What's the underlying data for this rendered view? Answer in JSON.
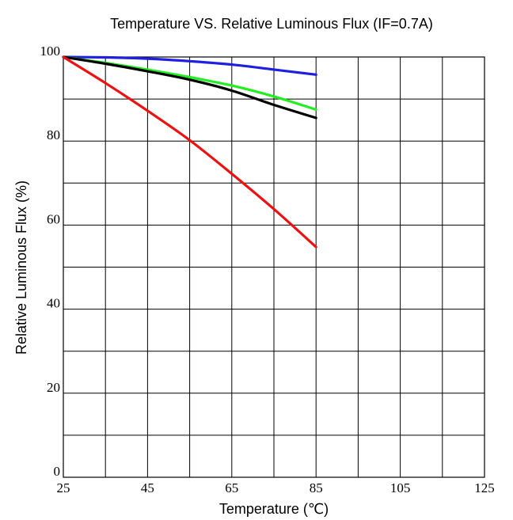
{
  "chart_data": {
    "type": "line",
    "title": "Temperature  VS.  Relative Luminous Flux (IF=0.7A)",
    "xlabel": "Temperature (℃)",
    "ylabel": "Relative Luminous Flux (%)",
    "xlim": [
      25,
      125
    ],
    "ylim": [
      0,
      100
    ],
    "x_ticks": [
      25,
      45,
      65,
      85,
      105,
      125
    ],
    "y_ticks": [
      0,
      20,
      40,
      60,
      80,
      100
    ],
    "x_grid_step": 10,
    "y_grid_step": 10,
    "grid": true,
    "series": [
      {
        "color": "#1f1fe0",
        "x": [
          25,
          35,
          45,
          55,
          65,
          75,
          85
        ],
        "y": [
          100,
          99.9,
          99.6,
          99.0,
          98.2,
          97.0,
          95.8
        ]
      },
      {
        "color": "#22ee22",
        "x": [
          25,
          35,
          45,
          55,
          65,
          75,
          85
        ],
        "y": [
          100,
          98.6,
          97.0,
          95.2,
          93.2,
          90.6,
          87.5
        ]
      },
      {
        "color": "#000000",
        "x": [
          25,
          35,
          45,
          55,
          65,
          75,
          85
        ],
        "y": [
          100,
          98.4,
          96.6,
          94.6,
          92.0,
          88.6,
          85.5
        ]
      },
      {
        "color": "#ee1111",
        "x": [
          25,
          35,
          45,
          55,
          65,
          75,
          85
        ],
        "y": [
          100,
          93.8,
          87.2,
          80.2,
          72.2,
          63.8,
          54.8
        ]
      }
    ]
  }
}
